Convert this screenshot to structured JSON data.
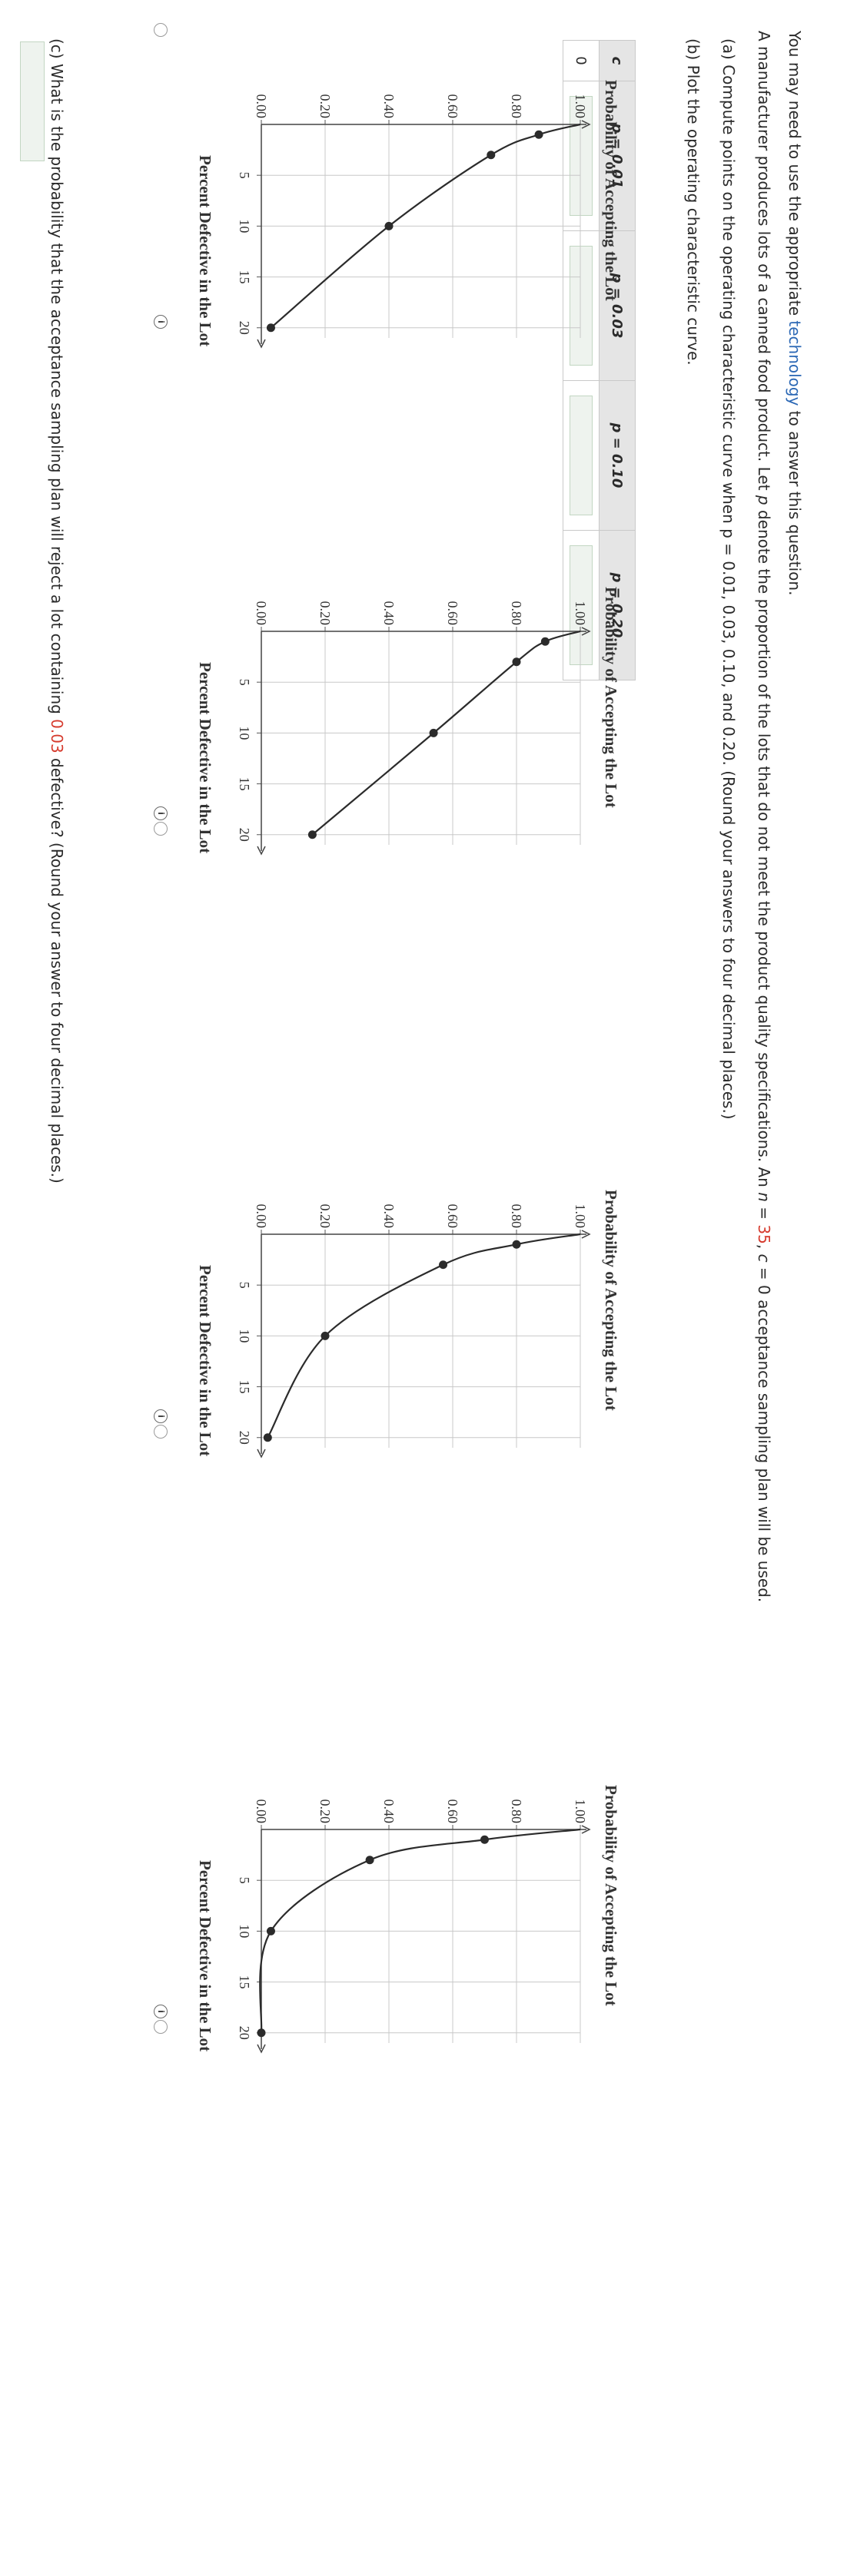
{
  "intro": {
    "prefix": "You may need to use the appropriate ",
    "link": "technology",
    "suffix": " to answer this question."
  },
  "problem": {
    "text1": "A manufacturer produces lots of a canned food product. Let ",
    "p": "p",
    "text2": " denote the proportion of the lots that do not meet the product quality specifications. An ",
    "n": "n",
    "eq1": " = ",
    "n_value": "35",
    "comma": ", ",
    "c": "c",
    "eq2": " = ",
    "c_value": "0",
    "text3": " acceptance sampling plan will be used."
  },
  "part_a": {
    "text": "(a)  Compute points on the operating characteristic curve when p = 0.01, 0.03, 0.10, and 0.20. (Round your answers to four decimal places.)"
  },
  "table": {
    "headers": {
      "c": "c",
      "p1": "p = 0.01",
      "p2": "p = 0.03",
      "p3": "p = 0.10",
      "p4": "p = 0.20"
    },
    "row": {
      "c": "0"
    }
  },
  "part_b": {
    "text": "(b)  Plot the operating characteristic curve."
  },
  "chart_common": {
    "ylabel": "Probability of Accepting the Lot",
    "xlabel": "Percent Defective in the Lot",
    "yticks": [
      "1.00",
      "0.80",
      "0.60",
      "0.40",
      "0.20",
      "0.00"
    ],
    "xticks": [
      "5",
      "10",
      "15",
      "20"
    ]
  },
  "chart_data": [
    {
      "type": "line",
      "x": [
        1,
        3,
        10,
        20
      ],
      "y": [
        0.87,
        0.72,
        0.4,
        0.03
      ],
      "xlim": [
        0,
        21
      ],
      "ylim": [
        0,
        1
      ],
      "xlabel": "Percent Defective in the Lot",
      "ylabel": "Probability of Accepting the Lot",
      "legend": "none"
    },
    {
      "type": "line",
      "x": [
        1,
        3,
        10,
        20
      ],
      "y": [
        0.89,
        0.8,
        0.54,
        0.16
      ],
      "xlim": [
        0,
        21
      ],
      "ylim": [
        0,
        1
      ],
      "xlabel": "Percent Defective in the Lot",
      "ylabel": "Probability of Accepting the Lot",
      "legend": "none"
    },
    {
      "type": "line",
      "x": [
        1,
        3,
        10,
        20
      ],
      "y": [
        0.8,
        0.57,
        0.2,
        0.02
      ],
      "xlim": [
        0,
        21
      ],
      "ylim": [
        0,
        1
      ],
      "xlabel": "Percent Defective in the Lot",
      "ylabel": "Probability of Accepting the Lot",
      "legend": "none"
    },
    {
      "type": "line",
      "x": [
        1,
        3,
        10,
        20
      ],
      "y": [
        0.7,
        0.34,
        0.03,
        0.0
      ],
      "xlim": [
        0,
        21
      ],
      "ylim": [
        0,
        1
      ],
      "xlabel": "Percent Defective in the Lot",
      "ylabel": "Probability of Accepting the Lot",
      "legend": "none"
    }
  ],
  "part_c": {
    "text1": "(c)  What is the probability that the acceptance sampling plan will reject a lot containing ",
    "value": "0.03",
    "text2": " defective? (Round your answer to four decimal places.)"
  },
  "icons": {
    "info": "info-icon",
    "radio": "radio-button"
  },
  "colors": {
    "accent_red": "#d63b2e",
    "link_blue": "#2c68b5",
    "curve": "#2b2b2b",
    "grid": "#c8c8c8"
  }
}
